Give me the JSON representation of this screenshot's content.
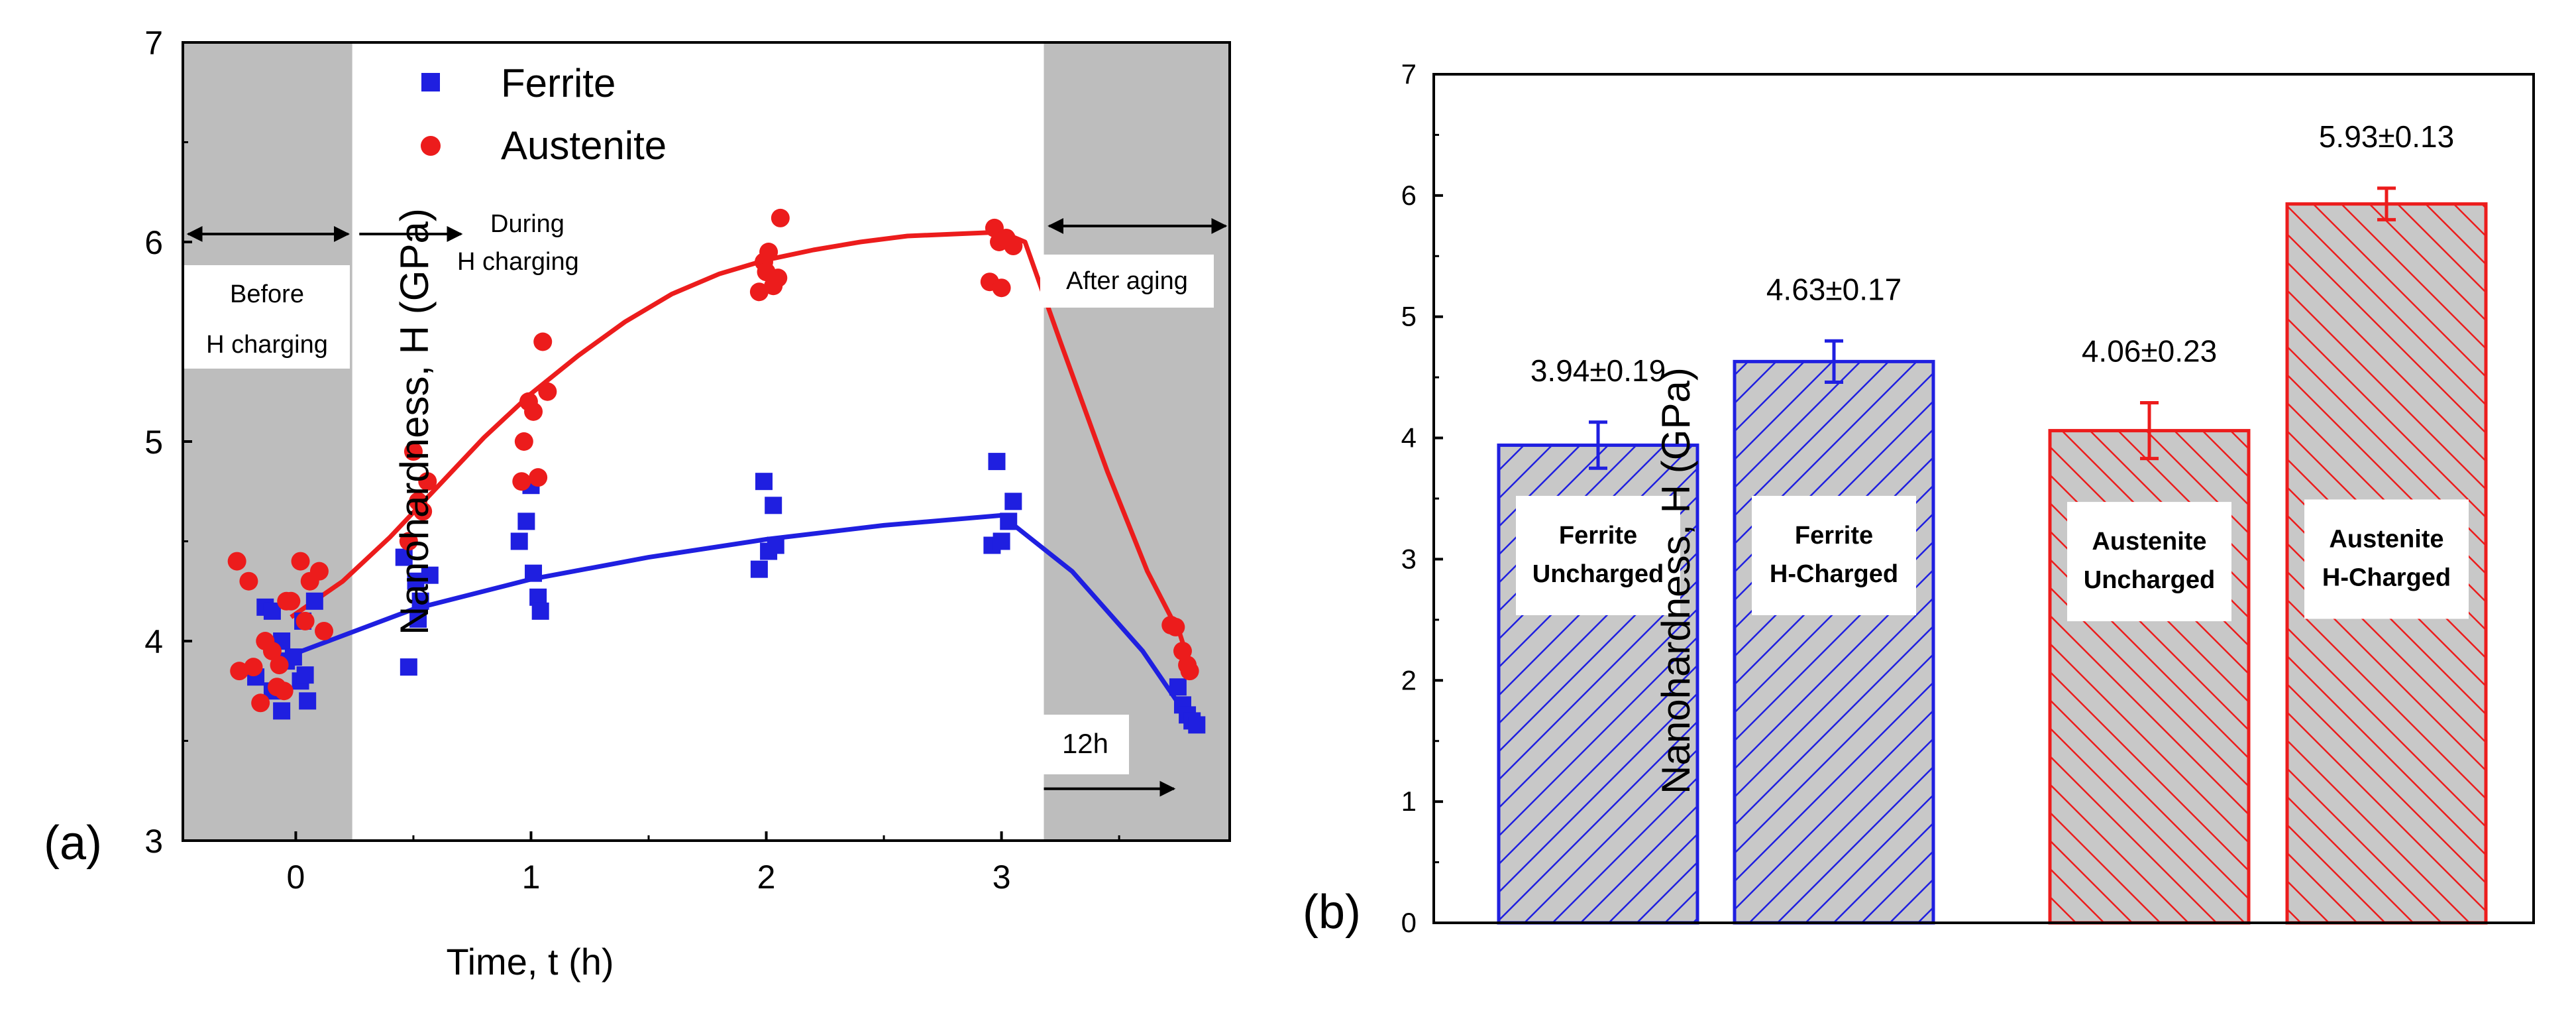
{
  "panel_a_label": "(a)",
  "panel_b_label": "(b)",
  "colors": {
    "ferrite": "#1f1fe0",
    "austenite": "#ec1c1c",
    "shade": "#bdbdbd",
    "bar_fill": "#c8c8c8"
  },
  "chart_data": [
    {
      "type": "scatter",
      "panel": "a",
      "title": "",
      "xlabel": "Time, t (h)",
      "ylabel": "Nanohardness, H (GPa)",
      "xlim": [
        -0.48,
        3.97
      ],
      "ylim": [
        3,
        7
      ],
      "xticks": [
        0,
        1,
        2,
        3
      ],
      "xtick_labels": [
        "0",
        "1",
        "2",
        "3"
      ],
      "yticks": [
        3,
        4,
        5,
        6,
        7
      ],
      "ytick_labels": [
        "3",
        "4",
        "5",
        "6",
        "7"
      ],
      "legend": {
        "placement": "top-center",
        "entries": [
          "Ferrite",
          "Austenite"
        ]
      },
      "shaded_regions": [
        {
          "x_from": -0.48,
          "x_to": 0.24,
          "label_lines": [
            "Before",
            "H charging"
          ]
        },
        {
          "x_from": 3.18,
          "x_to": 3.97,
          "label_lines": [
            "After aging"
          ]
        }
      ],
      "annotations": {
        "during": [
          "During",
          "H charging"
        ],
        "aging_time": "12h"
      },
      "arrows": [
        {
          "from": [
            -0.48,
            6.04
          ],
          "to": [
            0.24,
            6.04
          ],
          "double": true,
          "y_space": "data"
        },
        {
          "from": [
            0.27,
            6.04
          ],
          "to": [
            0.72,
            6.04
          ],
          "double": false
        },
        {
          "from": [
            3.18,
            6.08
          ],
          "to": [
            3.97,
            6.08
          ],
          "double": true
        },
        {
          "from": [
            3.18,
            3.26
          ],
          "to": [
            3.75,
            3.26
          ],
          "double": false
        }
      ],
      "series": [
        {
          "name": "Ferrite",
          "marker": "square",
          "points": [
            [
              -0.13,
              4.17
            ],
            [
              -0.1,
              4.15
            ],
            [
              -0.17,
              3.82
            ],
            [
              -0.06,
              4.0
            ],
            [
              -0.04,
              3.9
            ],
            [
              -0.1,
              3.75
            ],
            [
              -0.06,
              3.65
            ],
            [
              0.02,
              3.8
            ],
            [
              0.05,
              3.7
            ],
            [
              0.03,
              4.1
            ],
            [
              0.08,
              4.2
            ],
            [
              -0.01,
              3.92
            ],
            [
              0.04,
              3.83
            ],
            [
              0.46,
              4.42
            ],
            [
              0.48,
              3.87
            ],
            [
              0.51,
              4.3
            ],
            [
              0.52,
              4.11
            ],
            [
              0.53,
              4.2
            ],
            [
              0.57,
              4.33
            ],
            [
              0.95,
              4.5
            ],
            [
              0.98,
              4.6
            ],
            [
              1.0,
              4.78
            ],
            [
              1.01,
              4.34
            ],
            [
              1.03,
              4.22
            ],
            [
              1.04,
              4.15
            ],
            [
              1.97,
              4.36
            ],
            [
              1.99,
              4.8
            ],
            [
              2.01,
              4.45
            ],
            [
              2.03,
              4.68
            ],
            [
              2.04,
              4.48
            ],
            [
              2.96,
              4.48
            ],
            [
              2.98,
              4.9
            ],
            [
              3.0,
              4.5
            ],
            [
              3.03,
              4.6
            ],
            [
              3.05,
              4.7
            ],
            [
              3.75,
              3.77
            ],
            [
              3.77,
              3.68
            ],
            [
              3.79,
              3.63
            ],
            [
              3.81,
              3.6
            ],
            [
              3.83,
              3.58
            ]
          ],
          "fit_curve": [
            [
              -0.02,
              3.93
            ],
            [
              0.5,
              4.16
            ],
            [
              1.0,
              4.31
            ],
            [
              1.5,
              4.42
            ],
            [
              2.0,
              4.51
            ],
            [
              2.5,
              4.58
            ],
            [
              3.0,
              4.63
            ],
            [
              3.3,
              4.35
            ],
            [
              3.6,
              3.95
            ],
            [
              3.78,
              3.64
            ]
          ]
        },
        {
          "name": "Austenite",
          "marker": "circle",
          "points": [
            [
              -0.25,
              4.4
            ],
            [
              -0.2,
              4.3
            ],
            [
              -0.24,
              3.85
            ],
            [
              -0.18,
              3.87
            ],
            [
              -0.15,
              3.69
            ],
            [
              -0.13,
              4.0
            ],
            [
              -0.1,
              3.95
            ],
            [
              -0.08,
              3.77
            ],
            [
              -0.05,
              3.75
            ],
            [
              -0.04,
              4.2
            ],
            [
              -0.02,
              4.2
            ],
            [
              0.02,
              4.4
            ],
            [
              0.04,
              4.1
            ],
            [
              0.06,
              4.3
            ],
            [
              0.1,
              4.35
            ],
            [
              0.12,
              4.05
            ],
            [
              -0.07,
              3.88
            ],
            [
              0.5,
              4.95
            ],
            [
              0.52,
              4.7
            ],
            [
              0.54,
              4.65
            ],
            [
              0.56,
              4.8
            ],
            [
              0.48,
              4.5
            ],
            [
              0.96,
              4.8
            ],
            [
              0.97,
              5.0
            ],
            [
              0.99,
              5.2
            ],
            [
              1.01,
              5.15
            ],
            [
              1.03,
              4.82
            ],
            [
              1.05,
              5.5
            ],
            [
              1.07,
              5.25
            ],
            [
              1.97,
              5.75
            ],
            [
              1.99,
              5.9
            ],
            [
              2.0,
              5.85
            ],
            [
              2.01,
              5.95
            ],
            [
              2.03,
              5.78
            ],
            [
              2.05,
              5.82
            ],
            [
              2.06,
              6.12
            ],
            [
              2.95,
              5.8
            ],
            [
              2.97,
              6.07
            ],
            [
              2.99,
              6.0
            ],
            [
              3.0,
              5.77
            ],
            [
              3.02,
              6.02
            ],
            [
              3.05,
              5.98
            ],
            [
              3.72,
              4.08
            ],
            [
              3.74,
              4.07
            ],
            [
              3.77,
              3.95
            ],
            [
              3.79,
              3.88
            ],
            [
              3.8,
              3.85
            ]
          ],
          "fit_curve": [
            [
              -0.02,
              4.12
            ],
            [
              0.2,
              4.3
            ],
            [
              0.4,
              4.52
            ],
            [
              0.6,
              4.77
            ],
            [
              0.8,
              5.02
            ],
            [
              1.0,
              5.24
            ],
            [
              1.2,
              5.43
            ],
            [
              1.4,
              5.6
            ],
            [
              1.6,
              5.74
            ],
            [
              1.8,
              5.84
            ],
            [
              2.0,
              5.91
            ],
            [
              2.2,
              5.96
            ],
            [
              2.4,
              6.0
            ],
            [
              2.6,
              6.03
            ],
            [
              2.8,
              6.04
            ],
            [
              3.0,
              6.05
            ],
            [
              3.1,
              6.0
            ],
            [
              3.25,
              5.5
            ],
            [
              3.45,
              4.85
            ],
            [
              3.62,
              4.35
            ],
            [
              3.76,
              4.03
            ],
            [
              3.8,
              3.88
            ]
          ]
        }
      ]
    },
    {
      "type": "bar",
      "panel": "b",
      "title": "",
      "xlabel": "",
      "ylabel": "Nanohardness, H (GPa)",
      "ylim": [
        0,
        7
      ],
      "yticks": [
        0,
        1,
        2,
        3,
        4,
        5,
        6,
        7
      ],
      "ytick_labels": [
        "0",
        "1",
        "2",
        "3",
        "4",
        "5",
        "6",
        "7"
      ],
      "categories": [
        "Ferrite Uncharged",
        "Ferrite H-Charged",
        "Austenite Uncharged",
        "Austenite H-Charged"
      ],
      "bars": [
        {
          "phase": "ferrite",
          "value": 3.94,
          "error": 0.19,
          "value_label": "3.94±0.19",
          "inner_label": [
            "Ferrite",
            "Uncharged"
          ],
          "inner_label_y": 3.03
        },
        {
          "phase": "ferrite",
          "value": 4.63,
          "error": 0.17,
          "value_label": "4.63±0.17",
          "inner_label": [
            "Ferrite",
            "H-Charged"
          ],
          "inner_label_y": 3.03
        },
        {
          "phase": "austenite",
          "value": 4.06,
          "error": 0.23,
          "value_label": "4.06±0.23",
          "inner_label": [
            "Austenite",
            "Uncharged"
          ],
          "inner_label_y": 2.98
        },
        {
          "phase": "austenite",
          "value": 5.93,
          "error": 0.13,
          "value_label": "5.93±0.13",
          "inner_label": [
            "Austenite",
            "H-Charged"
          ],
          "inner_label_y": 3.0
        }
      ]
    }
  ]
}
